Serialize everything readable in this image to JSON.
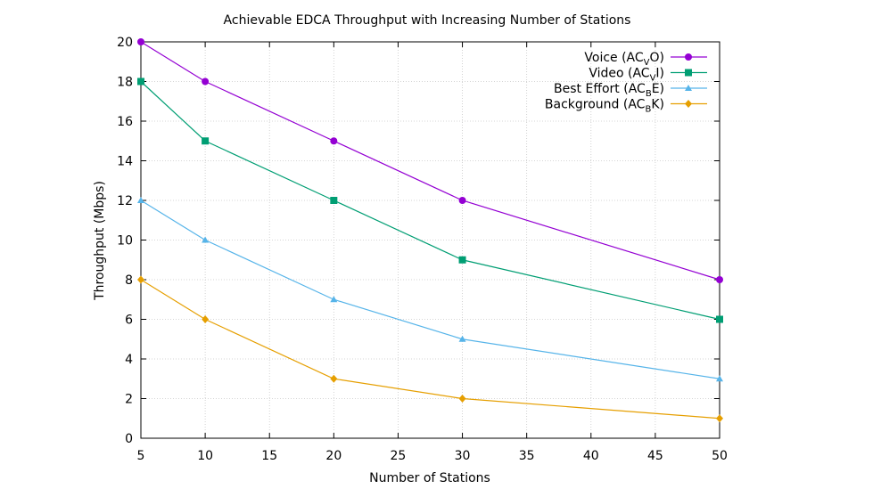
{
  "chart_data": {
    "type": "line",
    "title": "Achievable EDCA Throughput with Increasing Number of Stations",
    "xlabel": "Number of Stations",
    "ylabel": "Throughput (Mbps)",
    "xlim": [
      5,
      50
    ],
    "ylim": [
      0,
      20
    ],
    "xticks": [
      5,
      10,
      15,
      20,
      25,
      30,
      35,
      40,
      45,
      50
    ],
    "yticks": [
      0,
      2,
      4,
      6,
      8,
      10,
      12,
      14,
      16,
      18,
      20
    ],
    "grid": true,
    "legend_position": "top-right",
    "x": [
      5,
      10,
      20,
      30,
      50
    ],
    "series": [
      {
        "name": "Voice (AC",
        "sub": "V",
        "tail": "O)",
        "marker": "circle",
        "color": "#9400d3",
        "values": [
          20,
          18,
          15,
          12,
          8
        ]
      },
      {
        "name": "Video (AC",
        "sub": "V",
        "tail": "I)",
        "marker": "square",
        "color": "#009e73",
        "values": [
          18,
          15,
          12,
          9,
          6
        ]
      },
      {
        "name": "Best Effort (AC",
        "sub": "B",
        "tail": "E)",
        "marker": "triangle",
        "color": "#56b4e9",
        "values": [
          12,
          10,
          7,
          5,
          3
        ]
      },
      {
        "name": "Background (AC",
        "sub": "B",
        "tail": "K)",
        "marker": "diamond",
        "color": "#e69f00",
        "values": [
          8,
          6,
          3,
          2,
          1
        ]
      }
    ]
  }
}
